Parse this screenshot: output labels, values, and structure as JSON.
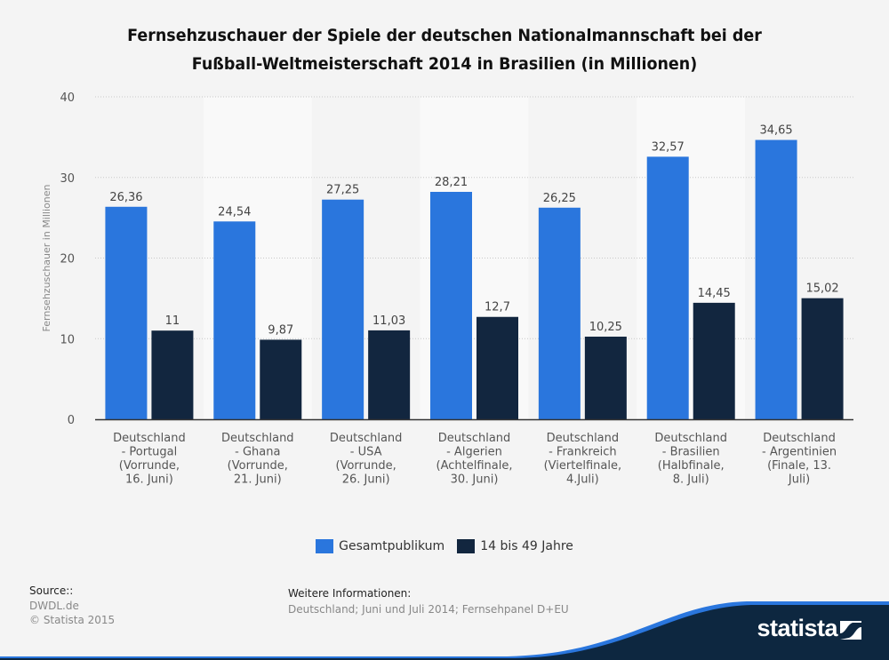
{
  "title_lines": [
    "Fernsehzuschauer der Spiele der deutschen Nationalmannschaft bei der",
    "Fußball-Weltmeisterschaft 2014 in Brasilien (in Millionen)"
  ],
  "colors": {
    "series_1": "#2a76dd",
    "series_2": "#12263f",
    "brand_dark": "#0d2740",
    "brand_accent": "#2a76dd"
  },
  "chart_data": {
    "type": "bar",
    "title": "Fernsehzuschauer der Spiele der deutschen Nationalmannschaft bei der Fußball-Weltmeisterschaft 2014 in Brasilien (in Millionen)",
    "xlabel": "",
    "ylabel": "Fernsehzuschauer in Millionen",
    "ylim": [
      0,
      40
    ],
    "yticks": [
      "0",
      "10",
      "20",
      "30",
      "40"
    ],
    "grid": true,
    "legend_position": "bottom-center",
    "categories": [
      [
        "Deutschland",
        "- Portugal",
        "(Vorrunde,",
        "16. Juni)"
      ],
      [
        "Deutschland",
        "- Ghana",
        "(Vorrunde,",
        "21. Juni)"
      ],
      [
        "Deutschland",
        "- USA",
        "(Vorrunde,",
        "26. Juni)"
      ],
      [
        "Deutschland",
        "- Algerien",
        "(Achtelfinale,",
        "30. Juni)"
      ],
      [
        "Deutschland",
        "- Frankreich",
        "(Viertelfinale,",
        "4.Juli)"
      ],
      [
        "Deutschland",
        "- Brasilien",
        "(Halbfinale,",
        "8. Juli)"
      ],
      [
        "Deutschland",
        "- Argentinien",
        "(Finale, 13.",
        "Juli)"
      ]
    ],
    "series": [
      {
        "name": "Gesamtpublikum",
        "values": [
          26.36,
          24.54,
          27.25,
          28.21,
          26.25,
          32.57,
          34.65
        ],
        "labels": [
          "26,36",
          "24,54",
          "27,25",
          "28,21",
          "26,25",
          "32,57",
          "34,65"
        ]
      },
      {
        "name": "14 bis 49 Jahre",
        "values": [
          11,
          9.87,
          11.03,
          12.7,
          10.25,
          14.45,
          15.02
        ],
        "labels": [
          "11",
          "9,87",
          "11,03",
          "12,7",
          "10,25",
          "14,45",
          "15,02"
        ]
      }
    ]
  },
  "legend": [
    {
      "label": "Gesamtpublikum"
    },
    {
      "label": "14 bis 49 Jahre"
    }
  ],
  "footer": {
    "source_header": "Source::",
    "source_lines": [
      "DWDL.de",
      "© Statista 2015"
    ],
    "info_header": "Weitere Informationen:",
    "info_text": "Deutschland; Juni und Juli 2014; Fernsehpanel D+EU"
  },
  "brand": {
    "name": "statista",
    "logo_icon": "statista-logo-icon"
  }
}
